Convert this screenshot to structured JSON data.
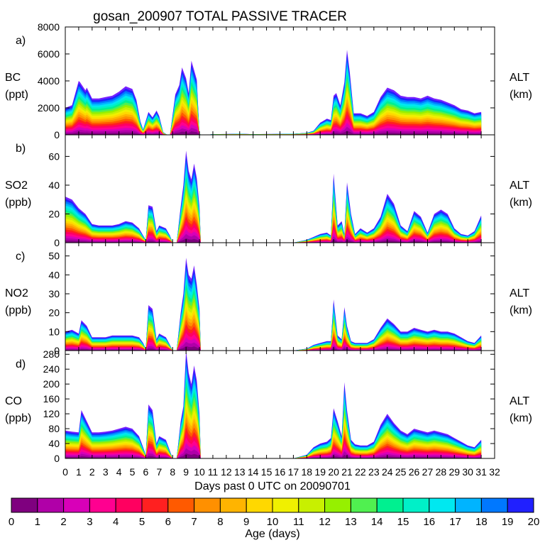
{
  "title": "gosan_200907 TOTAL PASSIVE TRACER",
  "xlabel": "Days past 0 UTC on 20090701",
  "colorbar": {
    "label": "Age (days)",
    "ticks": [
      "0",
      "1",
      "2",
      "3",
      "4",
      "5",
      "6",
      "7",
      "8",
      "9",
      "10",
      "11",
      "12",
      "13",
      "14",
      "15",
      "16",
      "17",
      "18",
      "19",
      "20"
    ],
    "colors": [
      "#7f007f",
      "#b000a8",
      "#d800b8",
      "#ff0090",
      "#ff0060",
      "#ff2020",
      "#ff5a00",
      "#ff9000",
      "#ffb400",
      "#ffd800",
      "#f0f000",
      "#c8f000",
      "#96f000",
      "#50f050",
      "#00f090",
      "#00f0c8",
      "#00e8f0",
      "#00b4ff",
      "#0078ff",
      "#2020ff",
      "#7820ff"
    ]
  },
  "chart_data": [
    {
      "type": "area",
      "panel": "a)",
      "ylabel": "BC",
      "yunit": "(ppt)",
      "right_label": "ALT",
      "right_unit": "(km)",
      "ylim": [
        0,
        8000
      ],
      "yticks": [
        0,
        2000,
        4000,
        6000,
        8000
      ],
      "xlim": [
        0,
        32
      ],
      "xticks": [
        0,
        1,
        2,
        3,
        4,
        5,
        6,
        7,
        8,
        9,
        10,
        11,
        12,
        13,
        14,
        15,
        16,
        17,
        18,
        19,
        20,
        21,
        22,
        23,
        24,
        25,
        26,
        27,
        28,
        29,
        30,
        31,
        32
      ],
      "x": [
        0,
        0.5,
        1,
        1.1,
        1.5,
        1.6,
        2,
        2.5,
        3,
        3.5,
        4,
        4.5,
        5,
        5.3,
        5.6,
        5.8,
        6.2,
        6.5,
        6.8,
        7,
        7.3,
        7.6,
        7.8,
        8.2,
        8.5,
        8.7,
        9,
        9.2,
        9.4,
        9.6,
        9.8,
        10,
        10.1,
        10.5,
        11,
        12,
        13,
        14,
        15,
        16,
        17,
        18,
        18.5,
        19,
        19.5,
        19.8,
        20,
        20.2,
        20.5,
        20.8,
        21,
        21.2,
        21.5,
        22,
        22.5,
        23,
        23.5,
        24,
        24.5,
        25,
        25.5,
        26,
        26.5,
        27,
        27.5,
        28,
        28.5,
        29,
        29.5,
        30,
        30.5,
        31
      ],
      "values": [
        2000,
        2200,
        4000,
        3900,
        3300,
        3500,
        2700,
        2700,
        2800,
        2900,
        3200,
        3600,
        3400,
        2600,
        1000,
        400,
        1700,
        1300,
        1800,
        1400,
        200,
        0,
        0,
        3000,
        3700,
        5000,
        4200,
        3100,
        5500,
        4800,
        4100,
        100,
        0,
        0,
        50,
        60,
        80,
        50,
        60,
        70,
        80,
        150,
        300,
        900,
        1200,
        1100,
        2900,
        3100,
        2200,
        3900,
        6300,
        4700,
        1600,
        1600,
        1400,
        1700,
        2800,
        3500,
        3300,
        2900,
        2800,
        2800,
        2700,
        2900,
        2700,
        2600,
        2400,
        2200,
        1900,
        1800,
        1600,
        1700
      ]
    },
    {
      "type": "area",
      "panel": "b)",
      "ylabel": "SO2",
      "yunit": "(ppb)",
      "right_label": "ALT",
      "right_unit": "(km)",
      "ylim": [
        0,
        75
      ],
      "yticks": [
        0,
        20,
        40,
        60
      ],
      "xlim": [
        0,
        32
      ],
      "x": [
        0,
        0.5,
        1,
        1.5,
        2,
        2.5,
        3,
        3.5,
        4,
        4.5,
        5,
        5.5,
        5.8,
        6,
        6.2,
        6.5,
        6.8,
        7,
        7.5,
        7.8,
        8,
        8.3,
        8.6,
        8.8,
        9,
        9.2,
        9.4,
        9.6,
        9.8,
        10,
        10.1,
        10.5,
        11,
        12,
        13,
        14,
        15,
        16,
        17,
        18,
        18.5,
        19,
        19.5,
        19.8,
        20,
        20.3,
        20.6,
        20.8,
        21,
        21.3,
        21.6,
        22,
        22.5,
        23,
        23.5,
        24,
        24.5,
        25,
        25.5,
        26,
        26.5,
        27,
        27.5,
        28,
        28.5,
        29,
        29.5,
        30,
        30.5,
        31
      ],
      "values": [
        32,
        30,
        24,
        20,
        13,
        12,
        12,
        12,
        13,
        15,
        14,
        10,
        5,
        2,
        26,
        25,
        8,
        12,
        10,
        5,
        0,
        0,
        25,
        40,
        64,
        50,
        44,
        55,
        45,
        25,
        0,
        0,
        0,
        0,
        0,
        0,
        0,
        0,
        0,
        2,
        4,
        6,
        7,
        5,
        48,
        12,
        15,
        6,
        42,
        20,
        6,
        10,
        7,
        10,
        18,
        34,
        27,
        12,
        8,
        22,
        18,
        7,
        20,
        23,
        20,
        10,
        6,
        5,
        8,
        19
      ]
    },
    {
      "type": "area",
      "panel": "c)",
      "ylabel": "NO2",
      "yunit": "(ppb)",
      "right_label": "ALT",
      "right_unit": "(km)",
      "ylim": [
        0,
        57
      ],
      "yticks": [
        0,
        10,
        20,
        30,
        40,
        50
      ],
      "xlim": [
        0,
        32
      ],
      "x": [
        0,
        0.5,
        1,
        1.2,
        1.6,
        2,
        2.5,
        3,
        3.5,
        4,
        4.5,
        5,
        5.5,
        5.8,
        6,
        6.2,
        6.5,
        6.8,
        7,
        7.5,
        7.8,
        8,
        8.3,
        8.6,
        8.8,
        9,
        9.2,
        9.4,
        9.6,
        9.8,
        10,
        10.1,
        10.5,
        11,
        12,
        13,
        14,
        15,
        16,
        17,
        18,
        18.5,
        19,
        19.5,
        19.8,
        20,
        20.3,
        20.6,
        20.8,
        21,
        21.3,
        21.6,
        22,
        22.5,
        23,
        23.5,
        24,
        24.5,
        25,
        25.5,
        26,
        26.5,
        27,
        27.5,
        28,
        28.5,
        29,
        29.5,
        30,
        30.5,
        31
      ],
      "values": [
        10,
        11,
        9,
        16,
        13,
        7,
        7,
        7,
        8,
        8,
        8,
        8,
        7,
        4,
        1,
        24,
        22,
        6,
        9,
        7,
        3,
        0,
        0,
        20,
        30,
        49,
        40,
        38,
        45,
        35,
        22,
        0,
        0,
        0,
        0,
        0,
        0,
        0,
        0,
        0,
        1,
        3,
        4,
        5,
        5,
        27,
        8,
        6,
        23,
        13,
        5,
        4,
        4,
        4,
        6,
        12,
        17,
        14,
        10,
        10,
        12,
        11,
        10,
        11,
        10,
        10,
        9,
        7,
        5,
        4,
        8
      ]
    },
    {
      "type": "area",
      "panel": "d)",
      "ylabel": "CO",
      "yunit": "(ppb)",
      "right_label": "ALT",
      "right_unit": "(km)",
      "ylim": [
        0,
        290
      ],
      "yticks": [
        0,
        40,
        80,
        120,
        160,
        200,
        240,
        280
      ],
      "xlim": [
        0,
        32
      ],
      "x": [
        0,
        0.5,
        1,
        1.2,
        1.6,
        2,
        2.5,
        3,
        3.5,
        4,
        4.5,
        5,
        5.5,
        5.8,
        6,
        6.2,
        6.5,
        6.8,
        7,
        7.5,
        7.8,
        8,
        8.3,
        8.6,
        8.8,
        9,
        9.2,
        9.4,
        9.6,
        9.8,
        10,
        10.1,
        10.5,
        11,
        12,
        13,
        14,
        15,
        16,
        17,
        18,
        18.5,
        19,
        19.5,
        19.8,
        20,
        20.3,
        20.6,
        20.8,
        21,
        21.3,
        21.6,
        22,
        22.5,
        23,
        23.5,
        24,
        24.5,
        25,
        25.5,
        26,
        26.5,
        27,
        27.5,
        28,
        28.5,
        29,
        29.5,
        30,
        30.5,
        31
      ],
      "values": [
        75,
        72,
        70,
        130,
        100,
        70,
        70,
        72,
        75,
        80,
        85,
        80,
        60,
        30,
        10,
        145,
        130,
        40,
        60,
        50,
        20,
        0,
        0,
        100,
        140,
        290,
        230,
        200,
        250,
        210,
        120,
        0,
        0,
        0,
        0,
        0,
        0,
        0,
        0,
        0,
        10,
        30,
        40,
        45,
        55,
        135,
        100,
        60,
        205,
        130,
        50,
        38,
        35,
        35,
        45,
        90,
        120,
        95,
        75,
        65,
        80,
        75,
        70,
        75,
        70,
        65,
        55,
        45,
        35,
        30,
        50
      ]
    }
  ]
}
